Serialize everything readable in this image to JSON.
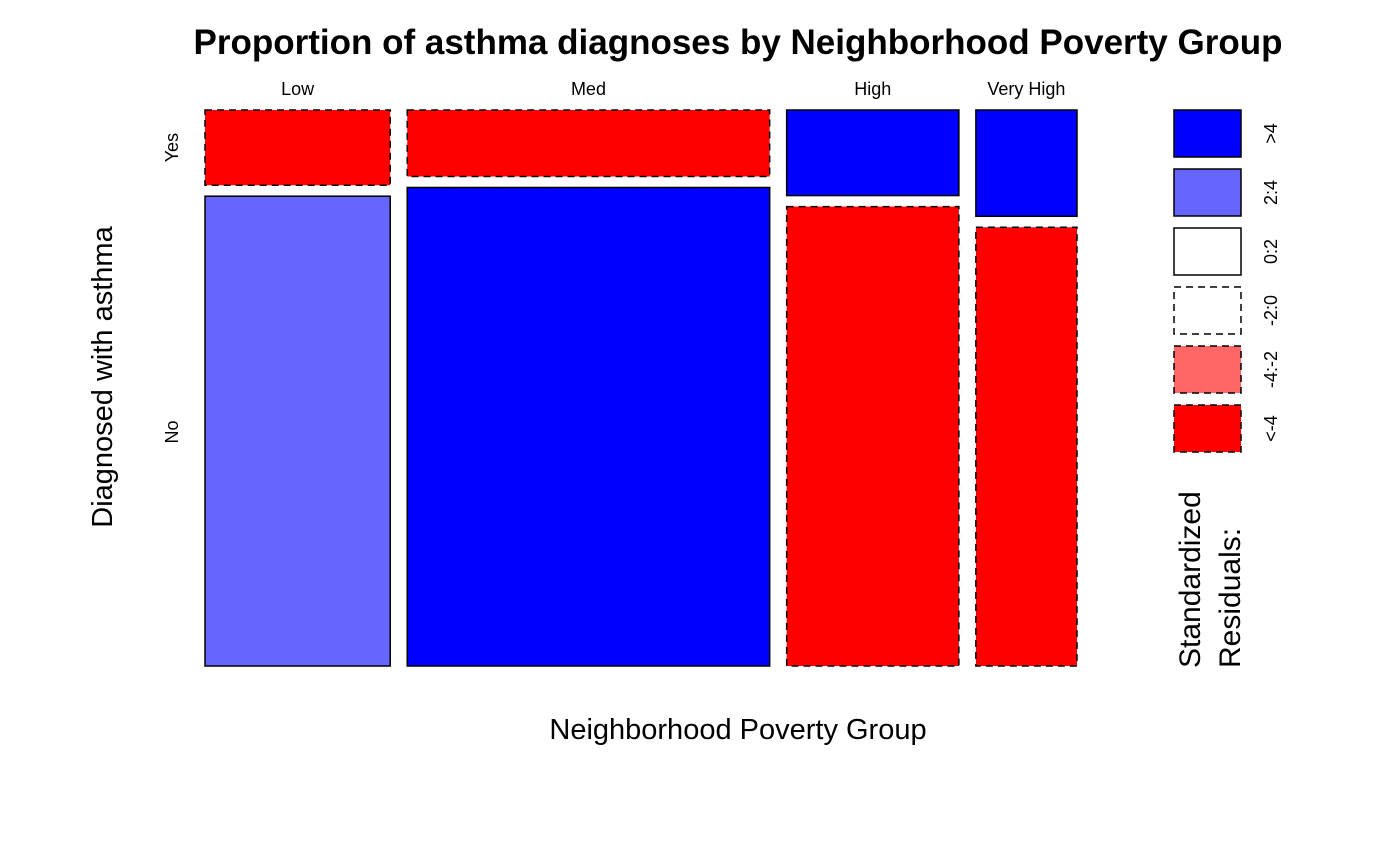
{
  "chart_data": {
    "type": "mosaic",
    "title": "Proportion of asthma diagnoses by Neighborhood Poverty Group",
    "xlabel": "Neighborhood Poverty Group",
    "ylabel": "Diagnosed with asthma",
    "categories": [
      "Low",
      "Med",
      "High",
      "Very High"
    ],
    "rows": [
      "Yes",
      "No"
    ],
    "column_share": [
      0.185,
      0.362,
      0.172,
      0.101
    ],
    "cells": [
      {
        "category": "Low",
        "yes_share": 0.138,
        "yes_residual": "<-4",
        "no_residual": "2:4"
      },
      {
        "category": "Med",
        "yes_share": 0.122,
        "yes_residual": "<-4",
        "no_residual": ">4"
      },
      {
        "category": "High",
        "yes_share": 0.157,
        "yes_residual": ">4",
        "no_residual": "<-4"
      },
      {
        "category": "Very High",
        "yes_share": 0.195,
        "yes_residual": ">4",
        "no_residual": "<-4"
      }
    ],
    "legend": {
      "title_lines": [
        "Standardized",
        "Residuals:"
      ],
      "items": [
        {
          "label": ">4",
          "color": "#0000FF",
          "dashed": false
        },
        {
          "label": "2:4",
          "color": "#6666FF",
          "dashed": false
        },
        {
          "label": "0:2",
          "color": "#FFFFFF",
          "dashed": false
        },
        {
          "label": "-2:0",
          "color": "#FFFFFF",
          "dashed": true
        },
        {
          "label": "-4:-2",
          "color": "#FF6666",
          "dashed": true
        },
        {
          "label": "<-4",
          "color": "#FF0000",
          "dashed": true
        }
      ]
    }
  }
}
